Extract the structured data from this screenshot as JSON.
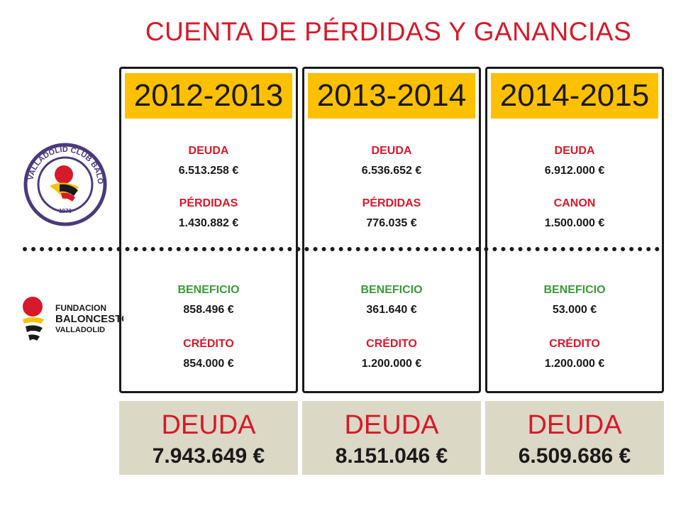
{
  "title": "CUENTA DE PÉRDIDAS Y GANANCIAS",
  "logos": {
    "club_text": "VALLADOLID CLUB BALONCESTO",
    "club_year": "1976",
    "fundacion_line1": "FUNDACION",
    "fundacion_line2": "BALONCESTO",
    "fundacion_line3": "VALLADOLID"
  },
  "columns": [
    {
      "year": "2012-2013",
      "top": [
        {
          "label": "DEUDA",
          "value": "6.513.258 €"
        },
        {
          "label": "PÉRDIDAS",
          "value": "1.430.882 €"
        }
      ],
      "bottom": [
        {
          "label": "BENEFICIO",
          "value": "858.496 €"
        },
        {
          "label": "CRÉDITO",
          "value": "854.000 €"
        }
      ],
      "total_label": "DEUDA",
      "total_value": "7.943.649 €"
    },
    {
      "year": "2013-2014",
      "top": [
        {
          "label": "DEUDA",
          "value": "6.536.652 €"
        },
        {
          "label": "PÉRDIDAS",
          "value": "776.035 €"
        }
      ],
      "bottom": [
        {
          "label": "BENEFICIO",
          "value": "361.640 €"
        },
        {
          "label": "CRÉDITO",
          "value": "1.200.000 €"
        }
      ],
      "total_label": "DEUDA",
      "total_value": "8.151.046 €"
    },
    {
      "year": "2014-2015",
      "top": [
        {
          "label": "DEUDA",
          "value": "6.912.000 €"
        },
        {
          "label": "CANON",
          "value": "1.500.000 €"
        }
      ],
      "bottom": [
        {
          "label": "BENEFICIO",
          "value": "53.000 €"
        },
        {
          "label": "CRÉDITO",
          "value": "1.200.000 €"
        }
      ],
      "total_label": "DEUDA",
      "total_value": "6.509.686 €"
    }
  ],
  "colors": {
    "title": "#d6192b",
    "year_bg": "#ffc000",
    "total_bg": "#dcd8c6",
    "green": "#3a9a3a"
  }
}
